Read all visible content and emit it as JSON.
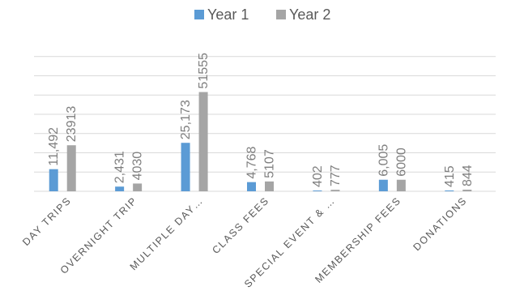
{
  "chart_data": {
    "type": "bar",
    "title": "",
    "xlabel": "",
    "ylabel": "",
    "categories": [
      "DAY TRIPS",
      "OVERNIGHT TRIP",
      "MULTIPLE DAY…",
      "CLASS FEES",
      "SPECIAL EVENT & …",
      "MEMBERSHIP FEES",
      "DONATIONS"
    ],
    "series": [
      {
        "name": "Year 1",
        "color": "#5b9bd5",
        "values": [
          11492,
          2431,
          25173,
          4768,
          402,
          6005,
          415
        ],
        "labels": [
          "11,492",
          "2,431",
          "25,173",
          "4,768",
          "402",
          "6,005",
          "415"
        ]
      },
      {
        "name": "Year 2",
        "color": "#a5a5a5",
        "values": [
          23913,
          4030,
          51555,
          5107,
          777,
          6000,
          844
        ],
        "labels": [
          "23913",
          "4030",
          "51555",
          "5107",
          "777",
          "6000",
          "844"
        ]
      }
    ],
    "ylim": [
      0,
      70000
    ],
    "gridlines": true,
    "legend_position": "top",
    "gridline_color": "#d9d9d9"
  }
}
